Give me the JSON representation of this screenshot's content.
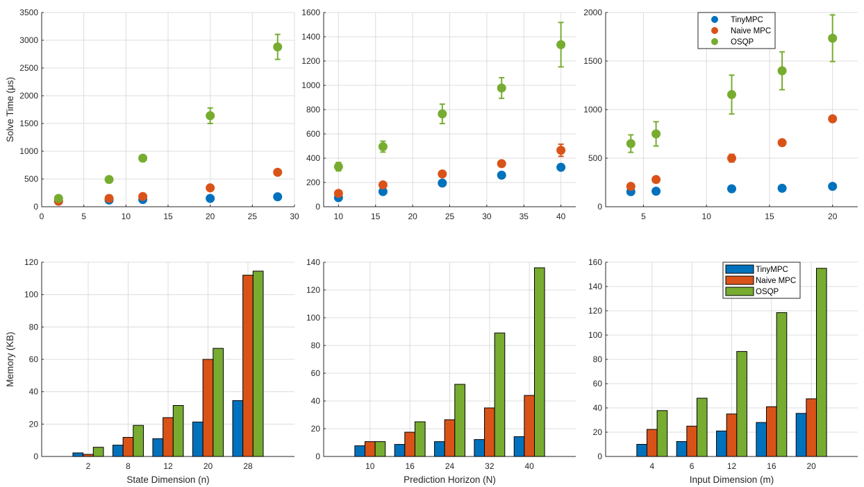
{
  "colors": {
    "TinyMPC": "#0072BD",
    "Naive MPC": "#D95319",
    "OSQP": "#77AC30"
  },
  "chart_data": [
    {
      "type": "scatter",
      "title": "",
      "xlabel": "",
      "ylabel": "Solve Time (μs)",
      "xlim": [
        0,
        30
      ],
      "ylim": [
        0,
        3500
      ],
      "xticks": [
        0,
        5,
        10,
        15,
        20,
        25,
        30
      ],
      "yticks": [
        0,
        500,
        1000,
        1500,
        2000,
        2500,
        3000,
        3500
      ],
      "grid": true,
      "x": [
        2,
        8,
        12,
        20,
        28
      ],
      "series": [
        {
          "name": "TinyMPC",
          "values": [
            100,
            120,
            130,
            150,
            180
          ],
          "err": [
            0,
            0,
            0,
            0,
            0
          ]
        },
        {
          "name": "Naive MPC",
          "values": [
            100,
            150,
            185,
            340,
            620
          ],
          "err": [
            0,
            0,
            0,
            0,
            0
          ]
        },
        {
          "name": "OSQP",
          "values": [
            150,
            490,
            875,
            1640,
            2880
          ],
          "err": [
            0,
            0,
            0,
            140,
            225
          ]
        }
      ]
    },
    {
      "type": "scatter",
      "title": "",
      "xlabel": "",
      "ylabel": "",
      "xlim": [
        8,
        42
      ],
      "ylim": [
        0,
        1600
      ],
      "xticks": [
        10,
        15,
        20,
        25,
        30,
        35,
        40
      ],
      "yticks": [
        0,
        200,
        400,
        600,
        800,
        1000,
        1200,
        1400,
        1600
      ],
      "grid": true,
      "x": [
        10,
        16,
        24,
        32,
        40
      ],
      "series": [
        {
          "name": "TinyMPC",
          "values": [
            75,
            125,
            195,
            260,
            325
          ],
          "err": [
            0,
            0,
            0,
            15,
            0
          ]
        },
        {
          "name": "Naive MPC",
          "values": [
            110,
            180,
            270,
            355,
            465
          ],
          "err": [
            0,
            0,
            0,
            0,
            50
          ]
        },
        {
          "name": "OSQP",
          "values": [
            330,
            495,
            765,
            978,
            1335
          ],
          "err": [
            35,
            45,
            80,
            85,
            183
          ]
        }
      ]
    },
    {
      "type": "scatter",
      "title": "",
      "xlabel": "",
      "ylabel": "",
      "xlim": [
        2,
        22
      ],
      "ylim": [
        0,
        2000
      ],
      "xticks": [
        5,
        10,
        15,
        20
      ],
      "yticks": [
        0,
        500,
        1000,
        1500,
        2000
      ],
      "grid": true,
      "legend": "top-center",
      "x": [
        4,
        6,
        12,
        16,
        20
      ],
      "series": [
        {
          "name": "TinyMPC",
          "values": [
            155,
            160,
            185,
            190,
            210
          ],
          "err": [
            0,
            0,
            0,
            0,
            0
          ]
        },
        {
          "name": "Naive MPC",
          "values": [
            210,
            280,
            500,
            660,
            905
          ],
          "err": [
            0,
            0,
            40,
            0,
            0
          ]
        },
        {
          "name": "OSQP",
          "values": [
            650,
            750,
            1155,
            1400,
            1735
          ],
          "err": [
            90,
            125,
            200,
            195,
            240
          ]
        }
      ]
    },
    {
      "type": "bar",
      "title": "",
      "xlabel": "State Dimension (n)",
      "ylabel": "Memory (KB)",
      "ylim": [
        0,
        120
      ],
      "yticks": [
        0,
        20,
        40,
        60,
        80,
        100,
        120
      ],
      "grid": true,
      "categories": [
        "2",
        "8",
        "12",
        "20",
        "28"
      ],
      "series": [
        {
          "name": "TinyMPC",
          "values": [
            2.2,
            7,
            11,
            21.3,
            34.5
          ]
        },
        {
          "name": "Naive MPC",
          "values": [
            1.3,
            11.8,
            24,
            60,
            112
          ]
        },
        {
          "name": "OSQP",
          "values": [
            5.7,
            19.2,
            31.5,
            66.8,
            114.5
          ]
        }
      ]
    },
    {
      "type": "bar",
      "title": "",
      "xlabel": "Prediction Horizon (N)",
      "ylabel": "",
      "ylim": [
        0,
        140
      ],
      "yticks": [
        0,
        20,
        40,
        60,
        80,
        100,
        120,
        140
      ],
      "grid": true,
      "categories": [
        "10",
        "16",
        "24",
        "32",
        "40"
      ],
      "series": [
        {
          "name": "TinyMPC",
          "values": [
            7.7,
            8.7,
            10.7,
            12.2,
            14.3
          ]
        },
        {
          "name": "Naive MPC",
          "values": [
            10.7,
            17.5,
            26.5,
            35,
            44
          ]
        },
        {
          "name": "OSQP",
          "values": [
            10.7,
            25,
            52,
            89,
            136
          ]
        }
      ]
    },
    {
      "type": "bar",
      "title": "",
      "xlabel": "Input Dimension (m)",
      "ylabel": "",
      "ylim": [
        0,
        160
      ],
      "yticks": [
        0,
        20,
        40,
        60,
        80,
        100,
        120,
        140,
        160
      ],
      "grid": true,
      "legend": "top-right",
      "categories": [
        "4",
        "6",
        "12",
        "16",
        "20"
      ],
      "series": [
        {
          "name": "TinyMPC",
          "values": [
            10,
            12.3,
            21,
            28,
            35.5
          ]
        },
        {
          "name": "Naive MPC",
          "values": [
            22.3,
            25,
            35,
            41,
            47.5
          ]
        },
        {
          "name": "OSQP",
          "values": [
            37.8,
            48,
            86.5,
            118.5,
            155
          ]
        }
      ]
    }
  ]
}
